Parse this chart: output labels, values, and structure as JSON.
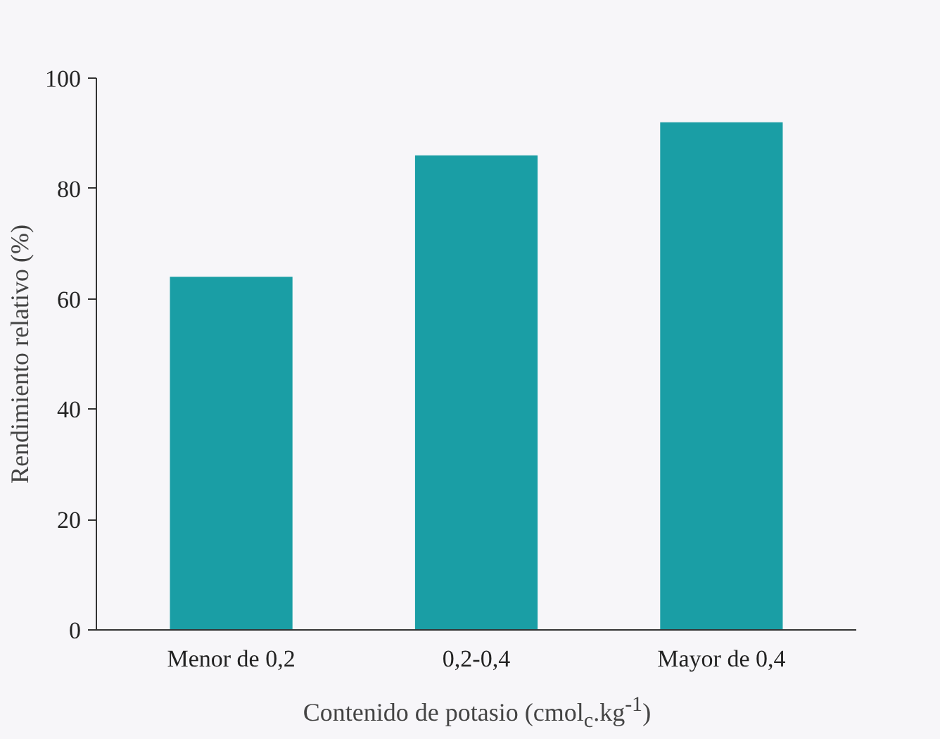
{
  "chart_data": {
    "type": "bar",
    "xlabel": "Contenido de potasio (cmol$_{c}$.kg$^{-1}$)",
    "ylabel": "Rendimiento relativo (%)",
    "categories": [
      "Menor de 0,2",
      "0,2-0,4",
      "Mayor de 0,4"
    ],
    "values": [
      64,
      86,
      92
    ],
    "color": "#1a9ea5",
    "ylim": [
      0,
      100
    ],
    "yticks": [
      0,
      20,
      40,
      60,
      80,
      100
    ],
    "grid": false
  }
}
